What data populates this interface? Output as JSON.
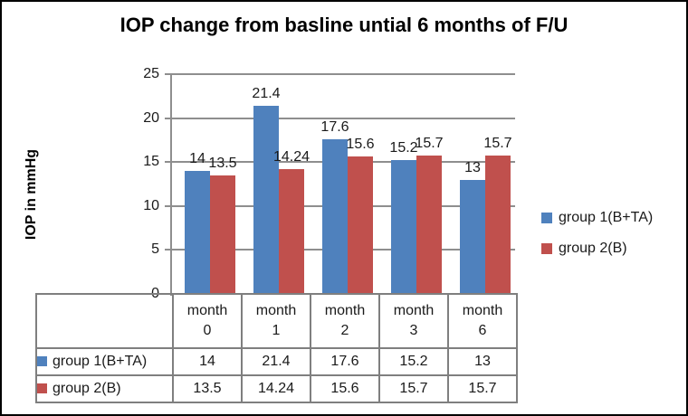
{
  "chart_data": {
    "type": "bar",
    "title": "IOP change from basline untial 6 months of F/U",
    "ylabel": "IOP in mmHg",
    "xlabel": "",
    "categories": [
      "month 0",
      "month 1",
      "month 2",
      "month 3",
      "month 6"
    ],
    "series": [
      {
        "name": "group 1(B+TA)",
        "color": "#4F81BD",
        "values": [
          14,
          21.4,
          17.6,
          15.2,
          13
        ]
      },
      {
        "name": "group 2(B)",
        "color": "#C0504D",
        "values": [
          13.5,
          14.24,
          15.6,
          15.7,
          15.7
        ]
      }
    ],
    "ylim": [
      0,
      25
    ],
    "yticks": [
      0,
      5,
      10,
      15,
      20,
      25
    ],
    "grid": true,
    "legend_position": "right",
    "data_table_shown": true,
    "data_labels_shown": true
  },
  "colors": {
    "gridline": "#8e8e8e",
    "table_border": "#7f7f7f",
    "frame_border": "#000000",
    "background": "#ffffff"
  }
}
